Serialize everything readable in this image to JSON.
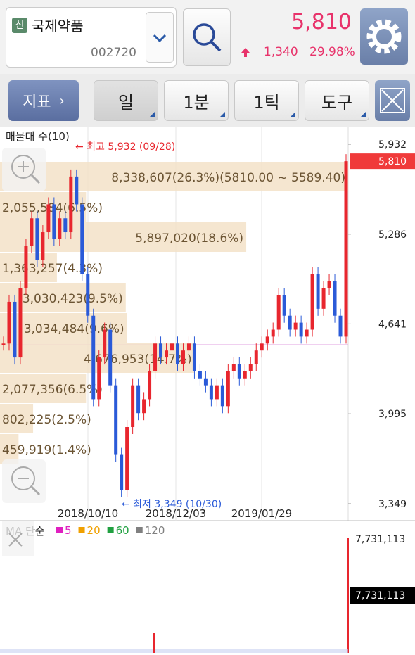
{
  "header": {
    "badge": "신",
    "name": "국제약품",
    "code": "002720",
    "price": "5,810",
    "change": "1,340",
    "change_pct": "29.98%"
  },
  "toolbar": {
    "indicator": "지표",
    "buttons": [
      "일",
      "1분",
      "1틱",
      "도구"
    ]
  },
  "price_chart": {
    "profile_title": "매물대 수(10)",
    "high_label": "← 최고 5,932 (09/28)",
    "low_label": "← 최저 3,349 (10/30)",
    "ylim": [
      3349,
      5932
    ],
    "yticks": [
      {
        "value": 5932,
        "label": "5,932"
      },
      {
        "value": 5286,
        "label": "5,286"
      },
      {
        "value": 4641,
        "label": "4,641"
      },
      {
        "value": 3995,
        "label": "3,995"
      },
      {
        "value": 3349,
        "label": "3,349"
      }
    ],
    "current_tick": {
      "value": 5810,
      "label": "5,810"
    },
    "dates": [
      "2018/10/10",
      "2018/12/03",
      "2019/01/29"
    ],
    "volume_profile": [
      {
        "label": "8,338,607(26.3%)(5810.00 ~ 5589.40)",
        "share": 26.3
      },
      {
        "label": "2,055,584(6.5%)",
        "share": 6.5
      },
      {
        "label": "5,897,020(18.6%)",
        "share": 18.6
      },
      {
        "label": "1,363,257(4.3%)",
        "share": 4.3
      },
      {
        "label": "3,030,423(9.5%)",
        "share": 9.5
      },
      {
        "label": "3,034,484(9.6%)",
        "share": 9.6
      },
      {
        "label": "4,676,953(14.7%)",
        "share": 14.7
      },
      {
        "label": "2,077,356(6.5%)",
        "share": 6.5
      },
      {
        "label": "802,225(2.5%)",
        "share": 2.5
      },
      {
        "label": "459,919(1.4%)",
        "share": 1.4
      }
    ],
    "closes": [
      4500,
      4800,
      4400,
      4900,
      5200,
      5400,
      5100,
      5300,
      5500,
      5250,
      5400,
      5300,
      5700,
      5500,
      5000,
      4700,
      4100,
      4400,
      4600,
      4200,
      3700,
      3450,
      3900,
      4200,
      4000,
      4100,
      4300,
      4500,
      4400,
      4450,
      4500,
      4350,
      4450,
      4500,
      4300,
      4250,
      4200,
      4100,
      4200,
      4050,
      4300,
      4350,
      4250,
      4300,
      4350,
      4450,
      4500,
      4550,
      4600,
      4850,
      4700,
      4600,
      4650,
      4550,
      4600,
      5000,
      4750,
      4900,
      4950,
      4700,
      4550,
      5810
    ]
  },
  "volume_chart": {
    "ma_title": "MA 단순",
    "ma_periods": [
      {
        "label": "5",
        "color": "#e020c0"
      },
      {
        "label": "20",
        "color": "#f0a000"
      },
      {
        "label": "60",
        "color": "#20a040"
      },
      {
        "label": "120",
        "color": "#808080"
      }
    ],
    "max_label": "7,731,113",
    "current_label": "7,731,113"
  }
}
